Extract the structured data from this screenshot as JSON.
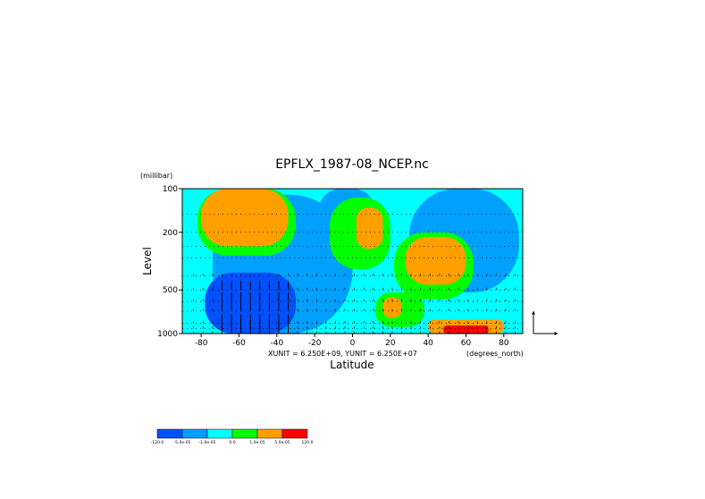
{
  "chart_data": {
    "type": "heatmap",
    "title": "EPFLX_1987-08_NCEP.nc",
    "xlabel": "Latitude",
    "ylabel": "Level",
    "yunit": "(millibar)",
    "xunit": "(degrees_north)",
    "vector_scale": "XUNIT = 6.250E+09, YUNIT = 6.250E+07",
    "x_ticks": [
      -80,
      -60,
      -40,
      -20,
      0,
      20,
      40,
      60,
      80
    ],
    "x_tick_labels": [
      "-80",
      "-60",
      "-40",
      "-20",
      "0",
      "20",
      "40",
      "60",
      "80"
    ],
    "y_ticks": [
      100,
      200,
      500,
      1000
    ],
    "y_tick_labels": [
      "100",
      "200",
      "500",
      "1000"
    ],
    "xlim": [
      -90,
      90
    ],
    "ylim": [
      1000,
      100
    ],
    "y_scale": "log",
    "pressure_levels": [
      100,
      150,
      200,
      250,
      300,
      400,
      500,
      600,
      700,
      850,
      925,
      1000
    ],
    "grid": true,
    "legend": {
      "position": "bottom-left",
      "levels": [
        "-120.0",
        "-5.0e-05",
        "-1.0e-05",
        "0.0",
        "1.0e-05",
        "5.0e-05",
        "120.0"
      ],
      "colors": [
        "#0050ff",
        "#00a0ff",
        "#00ffff",
        "#00ff00",
        "#ffa000",
        "#ff0000"
      ]
    },
    "regions": [
      {
        "value": "-1.0e-05 .. 0.0",
        "color": "#00ffff",
        "lat": [
          -90,
          90
        ],
        "p": [
          100,
          1000
        ]
      },
      {
        "value": "-5.0e-05 .. -1.0e-05",
        "color": "#00a0ff",
        "lat": [
          -74,
          0
        ],
        "p": [
          110,
          1000
        ]
      },
      {
        "value": "-5.0e-05 .. -1.0e-05",
        "color": "#00a0ff",
        "lat": [
          30,
          88
        ],
        "p": [
          100,
          520
        ]
      },
      {
        "value": "-5.0e-05 .. -1.0e-05",
        "color": "#00a0ff",
        "lat": [
          -18,
          12
        ],
        "p": [
          100,
          220
        ]
      },
      {
        "value": "0.0 .. 1.0e-05",
        "color": "#00ff00",
        "lat": [
          -82,
          -30
        ],
        "p": [
          100,
          290
        ]
      },
      {
        "value": "0.0 .. 1.0e-05",
        "color": "#00ff00",
        "lat": [
          -12,
          20
        ],
        "p": [
          115,
          360
        ]
      },
      {
        "value": "0.0 .. 1.0e-05",
        "color": "#00ff00",
        "lat": [
          22,
          64
        ],
        "p": [
          200,
          580
        ]
      },
      {
        "value": "0.0 .. 1.0e-05",
        "color": "#00ff00",
        "lat": [
          12,
          38
        ],
        "p": [
          520,
          900
        ]
      },
      {
        "value": "1.0e-05 .. 5.0e-05",
        "color": "#ffa000",
        "lat": [
          -80,
          -34
        ],
        "p": [
          100,
          250
        ]
      },
      {
        "value": "1.0e-05 .. 5.0e-05",
        "color": "#ffa000",
        "lat": [
          2,
          16
        ],
        "p": [
          135,
          260
        ]
      },
      {
        "value": "1.0e-05 .. 5.0e-05",
        "color": "#ffa000",
        "lat": [
          28,
          60
        ],
        "p": [
          215,
          460
        ]
      },
      {
        "value": "1.0e-05 .. 5.0e-05",
        "color": "#ffa000",
        "lat": [
          16,
          26
        ],
        "p": [
          560,
          780
        ]
      },
      {
        "value": "1.0e-05 .. 5.0e-05",
        "color": "#ffa000",
        "lat": [
          40,
          80
        ],
        "p": [
          800,
          1000
        ]
      },
      {
        "value": "5.0e-05 .. 120.0",
        "color": "#ff0000",
        "lat": [
          48,
          72
        ],
        "p": [
          880,
          1000
        ]
      },
      {
        "value": "-120.0 .. -5.0e-05",
        "color": "#0050ff",
        "lat": [
          -78,
          -30
        ],
        "p": [
          380,
          1000
        ]
      }
    ]
  }
}
